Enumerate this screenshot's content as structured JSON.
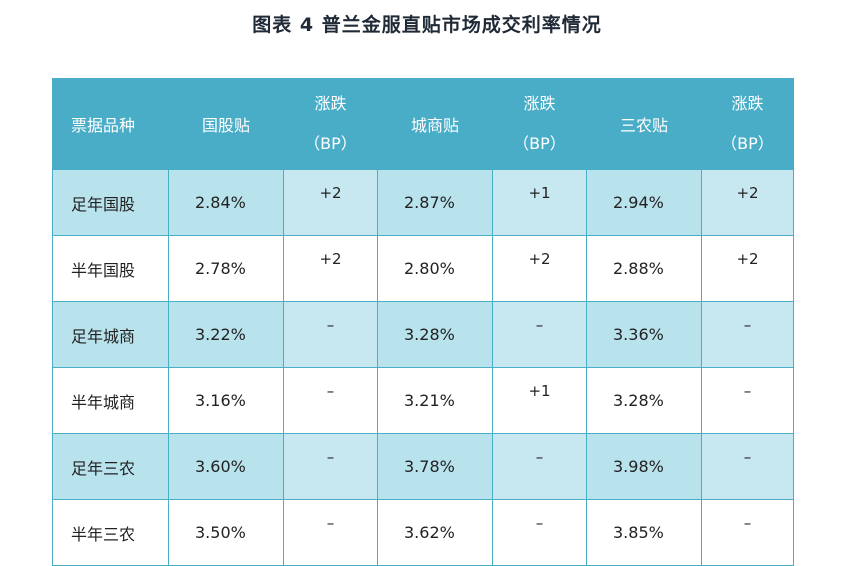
{
  "title": "图表 4  普兰金服直贴市场成交利率情况",
  "table": {
    "headers": [
      {
        "l1": "票据品种",
        "l2": ""
      },
      {
        "l1": "国股贴",
        "l2": ""
      },
      {
        "l1": "涨跌",
        "l2": "（BP）"
      },
      {
        "l1": "城商贴",
        "l2": ""
      },
      {
        "l1": "涨跌",
        "l2": "（BP）"
      },
      {
        "l1": "三农贴",
        "l2": ""
      },
      {
        "l1": "涨跌",
        "l2": "（BP）"
      }
    ],
    "rows": [
      [
        "足年国股",
        "2.84%",
        "+2",
        "2.87%",
        "+1",
        "2.94%",
        "+2"
      ],
      [
        "半年国股",
        "2.78%",
        "+2",
        "2.80%",
        "+2",
        "2.88%",
        "+2"
      ],
      [
        "足年城商",
        "3.22%",
        "–",
        "3.28%",
        "–",
        "3.36%",
        "–"
      ],
      [
        "半年城商",
        "3.16%",
        "–",
        "3.21%",
        "+1",
        "3.28%",
        "–"
      ],
      [
        "足年三农",
        "3.60%",
        "–",
        "3.78%",
        "–",
        "3.98%",
        "–"
      ],
      [
        "半年三农",
        "3.50%",
        "–",
        "3.62%",
        "–",
        "3.85%",
        "–"
      ]
    ]
  }
}
